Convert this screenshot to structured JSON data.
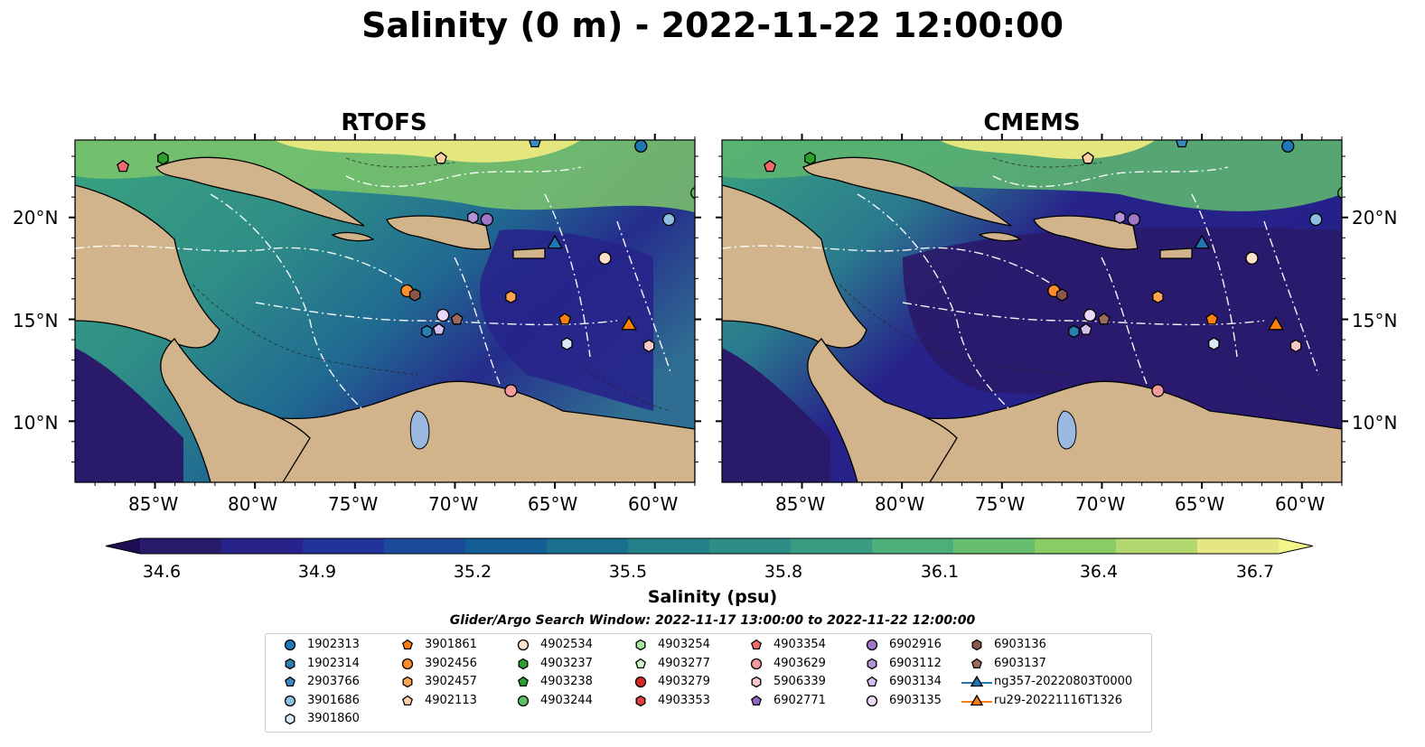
{
  "title": "Salinity (0 m) - 2022-11-22 12:00:00",
  "panels": [
    {
      "title": "RTOFS"
    },
    {
      "title": "CMEMS"
    }
  ],
  "lat_labels": [
    "20°N",
    "15°N",
    "10°N"
  ],
  "lon_labels": [
    "85°W",
    "80°W",
    "75°W",
    "70°W",
    "65°W",
    "60°W"
  ],
  "colorbar": {
    "label": "Salinity (psu)",
    "ticks": [
      "34.6",
      "34.9",
      "35.2",
      "35.5",
      "35.8",
      "36.1",
      "36.4",
      "36.7"
    ],
    "range": [
      34.6,
      36.7
    ],
    "colors": [
      "#2a1a6a",
      "#27238a",
      "#22349a",
      "#1a4a9a",
      "#135e94",
      "#18708d",
      "#237f89",
      "#2e8e85",
      "#3a9d81",
      "#4caf79",
      "#66be6e",
      "#88cc63",
      "#b3d86f",
      "#e6e683"
    ]
  },
  "search_window": "Glider/Argo Search Window: 2022-11-17 13:00:00 to 2022-11-22 12:00:00",
  "legend": {
    "columns": [
      [
        {
          "label": "1902313",
          "marker": "circle",
          "color": "#1f77b4"
        },
        {
          "label": "1902314",
          "marker": "hexagon",
          "color": "#2a7fb0"
        },
        {
          "label": "2903766",
          "marker": "pentagon",
          "color": "#3b8bc2"
        },
        {
          "label": "3901686",
          "marker": "circle",
          "color": "#8fbfe0"
        },
        {
          "label": "3901860",
          "marker": "hexagon",
          "color": "#d8e8f5"
        }
      ],
      [
        {
          "label": "3901861",
          "marker": "pentagon",
          "color": "#ff7f0e"
        },
        {
          "label": "3902456",
          "marker": "circle",
          "color": "#ff8c2a"
        },
        {
          "label": "3902457",
          "marker": "hexagon",
          "color": "#ffa550"
        },
        {
          "label": "4902113",
          "marker": "pentagon",
          "color": "#ffd0a0"
        }
      ],
      [
        {
          "label": "4902534",
          "marker": "circle",
          "color": "#ffe0c8"
        },
        {
          "label": "4903237",
          "marker": "hexagon",
          "color": "#2ca02c"
        },
        {
          "label": "4903238",
          "marker": "pentagon",
          "color": "#2ea02e"
        },
        {
          "label": "4903244",
          "marker": "circle",
          "color": "#60c060"
        }
      ],
      [
        {
          "label": "4903254",
          "marker": "hexagon",
          "color": "#a8e6a0"
        },
        {
          "label": "4903277",
          "marker": "pentagon",
          "color": "#d0f5c8"
        },
        {
          "label": "4903279",
          "marker": "circle",
          "color": "#d62728"
        },
        {
          "label": "4903353",
          "marker": "hexagon",
          "color": "#e04040"
        }
      ],
      [
        {
          "label": "4903354",
          "marker": "pentagon",
          "color": "#ef6b6b"
        },
        {
          "label": "4903629",
          "marker": "circle",
          "color": "#f39a9a"
        },
        {
          "label": "5906339",
          "marker": "hexagon",
          "color": "#f8c8c8"
        },
        {
          "label": "6902771",
          "marker": "pentagon",
          "color": "#9467bd"
        }
      ],
      [
        {
          "label": "6902916",
          "marker": "circle",
          "color": "#9f76c8"
        },
        {
          "label": "6903112",
          "marker": "hexagon",
          "color": "#b394d8"
        },
        {
          "label": "6903134",
          "marker": "pentagon",
          "color": "#d5bfee"
        },
        {
          "label": "6903135",
          "marker": "circle",
          "color": "#ead8f8"
        }
      ],
      [
        {
          "label": "6903136",
          "marker": "hexagon",
          "color": "#8c564b"
        },
        {
          "label": "6903137",
          "marker": "pentagon",
          "color": "#9a6a5c"
        },
        {
          "label": "ng357-20220803T0000",
          "marker": "triangle-line",
          "color": "#1f77b4"
        },
        {
          "label": "ru29-20221116T1326",
          "marker": "triangle-line",
          "color": "#ff7f0e"
        }
      ]
    ]
  },
  "stations": [
    {
      "label": "4903354",
      "marker": "pentagon",
      "color": "#ef6b6b",
      "lon": -86.6,
      "lat": 22.5
    },
    {
      "label": "4903237",
      "marker": "hexagon",
      "color": "#2ca02c",
      "lon": -84.6,
      "lat": 22.9
    },
    {
      "label": "4902113",
      "marker": "pentagon",
      "color": "#ffd0a0",
      "lon": -70.7,
      "lat": 22.9
    },
    {
      "label": "2903766",
      "marker": "pentagon",
      "color": "#3b8bc2",
      "lon": -66.0,
      "lat": 23.7
    },
    {
      "label": "1902313",
      "marker": "circle",
      "color": "#1f77b4",
      "lon": -60.7,
      "lat": 23.5
    },
    {
      "label": "4903244",
      "marker": "circle",
      "color": "#60c060",
      "lon": -57.9,
      "lat": 21.2
    },
    {
      "label": "6903112",
      "marker": "hexagon",
      "color": "#b394d8",
      "lon": -69.1,
      "lat": 20.0
    },
    {
      "label": "6902916",
      "marker": "circle",
      "color": "#9f76c8",
      "lon": -68.4,
      "lat": 19.9
    },
    {
      "label": "3901686",
      "marker": "circle",
      "color": "#8fbfe0",
      "lon": -59.3,
      "lat": 19.9
    },
    {
      "label": "4902534",
      "marker": "circle",
      "color": "#ffe0c8",
      "lon": -62.5,
      "lat": 18.0
    },
    {
      "label": "3902456",
      "marker": "circle",
      "color": "#ff8c2a",
      "lon": -72.4,
      "lat": 16.4
    },
    {
      "label": "6903136",
      "marker": "hexagon",
      "color": "#8c564b",
      "lon": -72.0,
      "lat": 16.2
    },
    {
      "label": "3902457",
      "marker": "hexagon",
      "color": "#ffa550",
      "lon": -67.2,
      "lat": 16.1
    },
    {
      "label": "3901861",
      "marker": "pentagon",
      "color": "#ff7f0e",
      "lon": -64.5,
      "lat": 15.0
    },
    {
      "label": "6903135",
      "marker": "circle",
      "color": "#ead8f8",
      "lon": -70.6,
      "lat": 15.2
    },
    {
      "label": "6903137",
      "marker": "pentagon",
      "color": "#9a6a5c",
      "lon": -69.9,
      "lat": 15.0
    },
    {
      "label": "1902314",
      "marker": "hexagon",
      "color": "#2a7fb0",
      "lon": -71.4,
      "lat": 14.4
    },
    {
      "label": "6903134",
      "marker": "pentagon",
      "color": "#d5bfee",
      "lon": -70.8,
      "lat": 14.5
    },
    {
      "label": "3901860",
      "marker": "hexagon",
      "color": "#d8e8f5",
      "lon": -64.4,
      "lat": 13.8
    },
    {
      "label": "5906339",
      "marker": "hexagon",
      "color": "#f8c8c8",
      "lon": -60.3,
      "lat": 13.7
    },
    {
      "label": "4903629",
      "marker": "circle",
      "color": "#f39a9a",
      "lon": -67.2,
      "lat": 11.5
    },
    {
      "label": "ng357-20220803T0000",
      "marker": "triangle",
      "color": "#1f77b4",
      "lon": -65.0,
      "lat": 18.7
    },
    {
      "label": "ru29-20221116T1326",
      "marker": "triangle",
      "color": "#ff7f0e",
      "lon": -61.3,
      "lat": 14.7
    }
  ]
}
